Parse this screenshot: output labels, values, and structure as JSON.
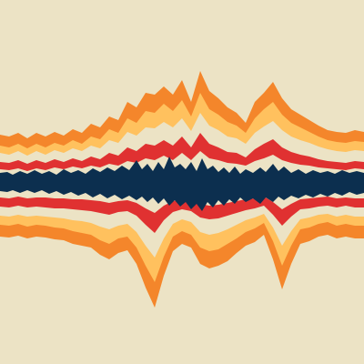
{
  "artwork": {
    "background_color": "#ece3c5",
    "palette": {
      "orange": "#f4862b",
      "yellow": "#ffc15e",
      "cream": "#ece3c5",
      "red": "#e03131",
      "navy": "#0c2f4f"
    }
  }
}
